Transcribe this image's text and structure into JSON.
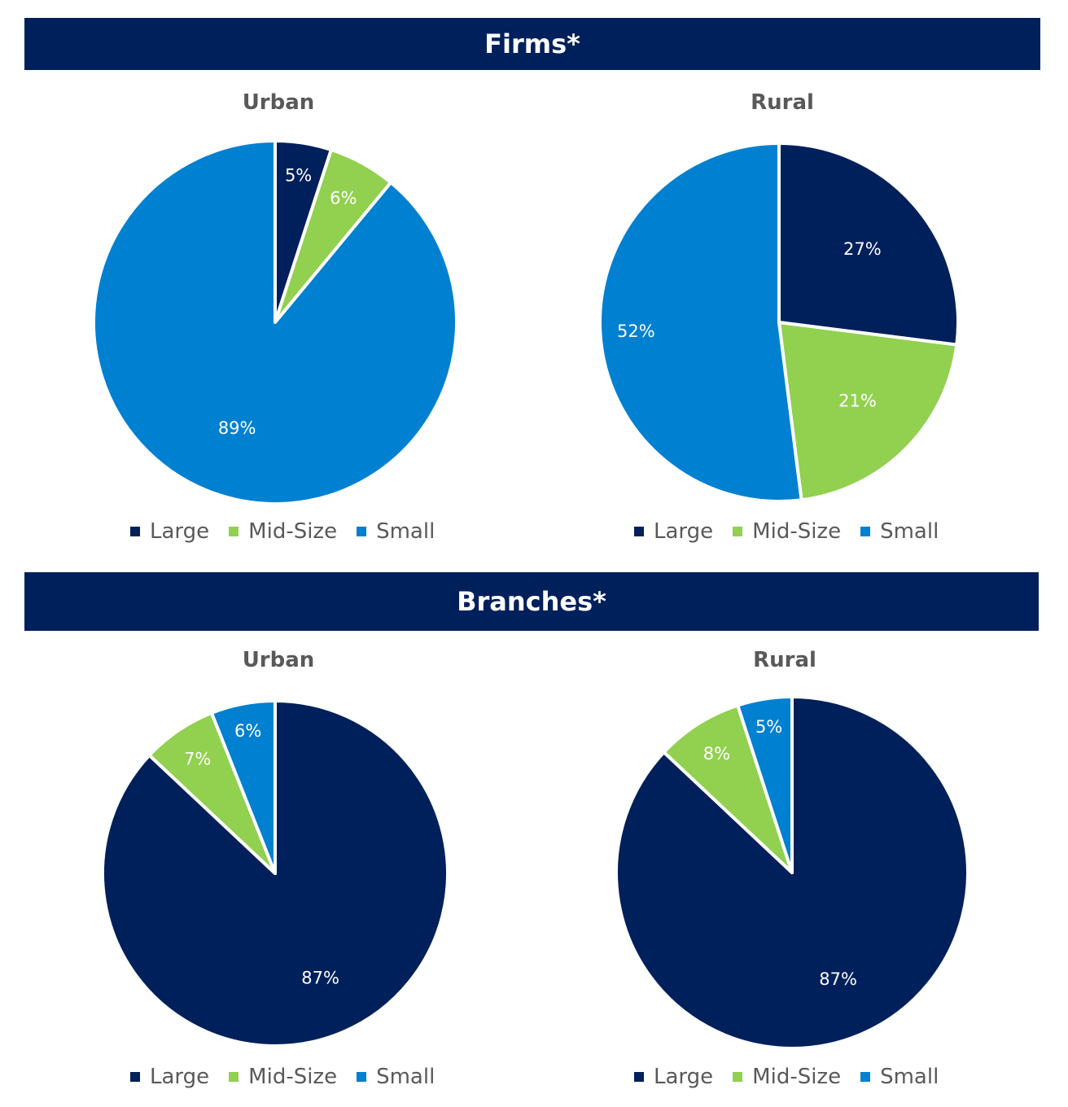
{
  "sections": [
    {
      "title": "Firms*"
    },
    {
      "title": "Branches*"
    }
  ],
  "colors": {
    "large": "#00205b",
    "mid_size": "#92d050",
    "small": "#0080d0",
    "banner": "#00205b"
  },
  "legend": [
    "Large",
    "Mid-Size",
    "Small"
  ],
  "chart_data": [
    {
      "type": "pie",
      "section": "Firms*",
      "title": "Urban",
      "categories": [
        "Large",
        "Mid-Size",
        "Small"
      ],
      "values": [
        5,
        6,
        89
      ],
      "labels": [
        "5%",
        "6%",
        "89%"
      ],
      "legend_position": "bottom"
    },
    {
      "type": "pie",
      "section": "Firms*",
      "title": "Rural",
      "categories": [
        "Large",
        "Mid-Size",
        "Small"
      ],
      "values": [
        27,
        21,
        52
      ],
      "labels": [
        "27%",
        "21%",
        "52%"
      ],
      "legend_position": "bottom"
    },
    {
      "type": "pie",
      "section": "Branches*",
      "title": "Urban",
      "categories": [
        "Large",
        "Mid-Size",
        "Small"
      ],
      "values": [
        87,
        7,
        6
      ],
      "labels": [
        "87%",
        "7%",
        "6%"
      ],
      "legend_position": "bottom"
    },
    {
      "type": "pie",
      "section": "Branches*",
      "title": "Rural",
      "categories": [
        "Large",
        "Mid-Size",
        "Small"
      ],
      "values": [
        87,
        8,
        5
      ],
      "labels": [
        "87%",
        "8%",
        "5%"
      ],
      "legend_position": "bottom"
    }
  ]
}
